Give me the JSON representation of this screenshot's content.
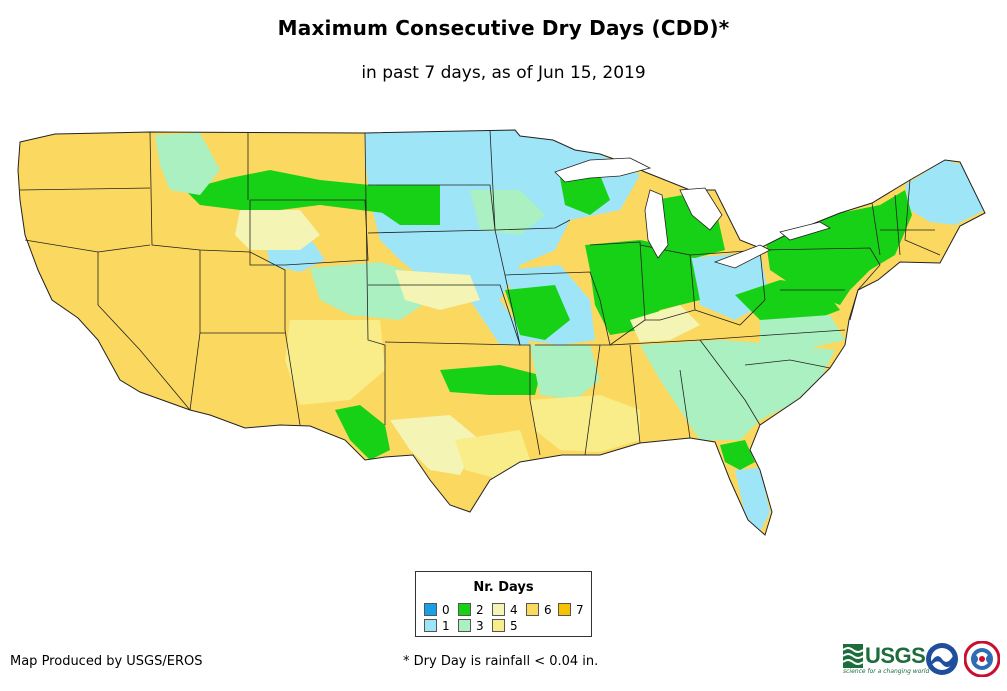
{
  "title": "Maximum Consecutive Dry Days (CDD)*",
  "subtitle": "in past 7 days, as of Jun 15, 2019",
  "legend": {
    "title": "Nr. Days",
    "items": [
      {
        "label": "0",
        "color": "#1a9ee6"
      },
      {
        "label": "1",
        "color": "#9ee6f7"
      },
      {
        "label": "2",
        "color": "#17d117"
      },
      {
        "label": "3",
        "color": "#aaf0c0"
      },
      {
        "label": "4",
        "color": "#f4f4b4"
      },
      {
        "label": "5",
        "color": "#f9ed8a"
      },
      {
        "label": "6",
        "color": "#fbd860"
      },
      {
        "label": "7",
        "color": "#f7c200"
      }
    ]
  },
  "credit": "Map Produced by USGS/EROS",
  "footnote": "* Dry Day is rainfall < 0.04 in.",
  "logos": {
    "usgs": "USGS",
    "usgs_tagline": "science for a changing world"
  }
}
